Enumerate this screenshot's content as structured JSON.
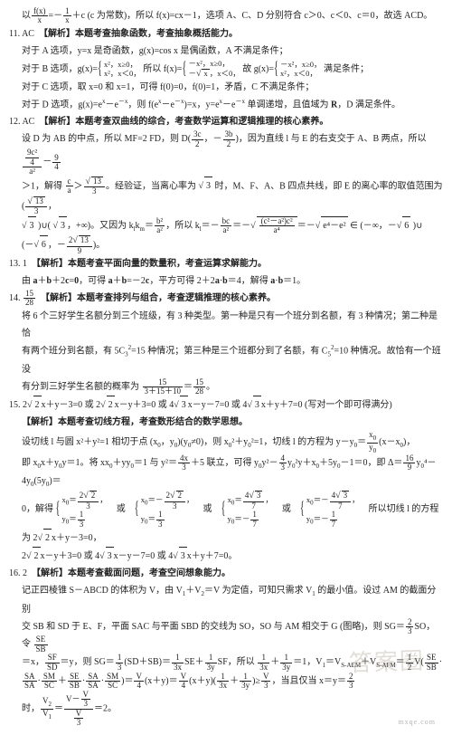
{
  "pre": {
    "line": "以<span class='frac'><span class='n'>f(x)</span><span class='d'>x</span></span>=－<span class='frac'><span class='n'>1</span><span class='d'>x</span></span>＋c (c 为常数)，所以 f(x)=cx－1，选项 A、C、D 分别符合 c＞0、c＜0、c＝0，故选 ACD。"
  },
  "q11": {
    "head": "11. AC　<span class='b'>【解析】本题考查抽象函数，考查抽象概括能力。</span>",
    "a": "对于 A 选项，y=x 是奇函数，g(x)=cos x 是偶函数，A 不满足条件；",
    "b": "对于 B 选项，g(x)=<span class='brace'><span class='row'>x²，x≥0，</span><span class='row'>x²，x＜0，</span></span> 所以 f(x)=<span class='brace'><span class='row'>－x²，x≥0，</span><span class='row'>－<span class='radical'></span><span class='sqrt'>x</span>，x＜0，</span></span> 故 g(x)=<span class='brace'><span class='row'>－x²，x≥0，</span><span class='row'>x²，x＜0，</span></span> 满足条件；",
    "c": "对于 C 选项，取 x=0 和 x=1，可得 f(0)=0，f(0)=1，矛盾，C 不满足条件；",
    "d": "对于 D 选项，g(x)=e<span class='sup'>x</span>－e<span class='sup'>－x</span>，则 f(e<span class='sup'>x</span>－e<span class='sup'>－x</span>)=x，y=e<span class='sup'>x</span>－e<span class='sup'>－x</span> 单调递增，且值域为 <span class='b'>R</span>，D 满足条件。"
  },
  "q12": {
    "head": "12. AC　<span class='b'>【解析】本题考查双曲线的综合，考查数学运算和逻辑推理的核心素养。</span>",
    "p1": "设 D 为 AB 的中点，所以 MF=2 FD，则 D(<span class='frac'><span class='n'>3c</span><span class='d'>2</span></span>，－<span class='frac'><span class='n'>3b</span><span class='d'>2</span></span>)，因为直线 l 与 E 的右支交于 A、B 两点，所以 <span class='frac'><span class='n'><span class='frac'><span class='n'>9c²</span><span class='d'>4</span></span></span><span class='d'>a²</span></span>－<span class='frac'><span class='n'>9</span><span class='d'>4</span></span>",
    "p2": "＞1，解得 <span class='frac'><span class='n'>c</span><span class='d'>a</span></span>＞<span class='frac'><span class='n'><span class='radical'></span><span class='sqrt'>13</span></span><span class='d'>3</span></span>。经验证，当离心率为 <span class='radical'></span><span class='sqrt'>3</span> 时，M、F、A、B 四点共线，即 E 的离心率的取值范围为 (<span class='frac'><span class='n'><span class='radical'></span><span class='sqrt'>13</span></span><span class='d'>3</span></span>，",
    "p3": "<span class='radical'></span><span class='sqrt'>3</span> )∪( <span class='radical'></span><span class='sqrt'>3</span>，+∞)。又因为 k<span class='sub'>l</span>k<span class='sub'>m</span>＝<span class='frac'><span class='n'>b²</span><span class='d'>a²</span></span>，所以 k<span class='sub'>l</span>＝－<span class='frac'><span class='n'>bc</span><span class='d'>a²</span></span>＝－<span class='radical'></span><span class='sqrt'><span class='frac'><span class='n'>(c²－a²)c²</span><span class='d'>a⁴</span></span></span>＝－<span class='radical'></span><span class='sqrt'>e⁴－e²</span> ∈ (－∞，－<span class='radical'></span><span class='sqrt'>6</span> )∪",
    "p4": "(－<span class='radical'></span><span class='sqrt'>6</span>，－<span class='frac'><span class='n'>2<span class='radical'></span><span class='sqrt'>13</span></span><span class='d'>9</span></span>)。"
  },
  "q13": {
    "head": "13. 1　<span class='b'>【解析】本题考查平面向量的数量积，考查运算求解能力。</span>",
    "p1": "由 <span class='b'>a</span>＋<span class='b'>b</span>＋2<span class='b'>c</span>=<span class='b'>0</span>，可得 <span class='b'>a</span>＋<span class='b'>b</span>=－2<span class='b'>c</span>，平方可得 2＋2<span class='b'>a</span>·<span class='b'>b</span>＝4，解得 <span class='b'>a</span>·<span class='b'>b</span>＝1。"
  },
  "q14": {
    "head": "14. <span class='frac'><span class='n'>15</span><span class='d'>28</span></span>　<span class='b'>【解析】本题考查排列与组合，考查逻辑推理的核心素养。</span>",
    "p1": "将 6 个三好学生名额分到三个班级，有 3 种类型。第一种是只有一个班分到名额，有 3 种情况；第二种是恰",
    "p2": "有两个班分到名额，有 5C<span class='sub'>3</span><span class='sup'>2</span>=15 种情况；第三种是三个班都分到了名额，有 C<span class='sub'>5</span><span class='sup'>2</span>=10 种情况。故恰有一个班没",
    "p3": "有分到三好学生名额的概率为 <span class='frac'><span class='n'>15</span><span class='d'>3＋15＋10</span></span>＝<span class='frac'><span class='n'>15</span><span class='d'>28</span></span>。"
  },
  "q15": {
    "head": "15. 2<span class='radical'></span><span class='sqrt'>2</span>x＋y－3=0 或 2<span class='radical'></span><span class='sqrt'>2</span>x－y＋3=0 或 4<span class='radical'></span><span class='sqrt'>3</span>x－y－7=0 或 4<span class='radical'></span><span class='sqrt'>3</span>x＋y＋7=0 (写对一个即可得满分)",
    "tag": "<span class='b'>【解析】本题考查切线方程，考查数形结合的数学思想。</span>",
    "p1": "设切线 l 与圆 x²＋y²=1 相切于点 (x<span class='sub'>0</span>，y<span class='sub'>0</span>)(y<span class='sub'>0</span>≠0)，则 x<span class='sub'>0</span>²＋y<span class='sub'>0</span>²=1，切线 l 的方程为 y－y<span class='sub'>0</span>＝<span class='frac'><span class='n'>x<span class='sub'>0</span></span><span class='d'>y<span class='sub'>0</span></span></span>(x－x<span class='sub'>0</span>)，",
    "p2": "即 x<span class='sub'>0</span>x＋y<span class='sub'>0</span>y＝1。将 xx<span class='sub'>0</span>＋yy<span class='sub'>0</span>＝1 与 y²＝<span class='frac'><span class='n'>4x</span><span class='d'>3</span></span>＋5 联立，可得 y<span class='sub'>0</span>y²－<span class='frac'><span class='n'>4</span><span class='d'>3</span></span>y<span class='sub'>0</span>²y＋x<span class='sub'>0</span>＋5y<span class='sub'>0</span>－1＝0，即 Δ＝<span class='frac'><span class='n'>16</span><span class='d'>9</span></span>y<span class='sub'>0</span>⁴－4y<span class='sub'>0</span>(5y<span class='sub'>0</span>)＝",
    "p3": "0，解得 <span class='brace'><span class='row'>x<span class='sub'>0</span>＝<span class='frac'><span class='n'>2<span class='radical'></span><span class='sqrt'>2</span></span><span class='d'>3</span></span>，</span><span class='row'>y<span class='sub'>0</span>＝<span class='frac'><span class='n'>1</span><span class='d'>3</span></span></span></span>　或　<span class='brace'><span class='row'>x<span class='sub'>0</span>＝－<span class='frac'><span class='n'>2<span class='radical'></span><span class='sqrt'>2</span></span><span class='d'>3</span></span>，</span><span class='row'>y<span class='sub'>0</span>＝<span class='frac'><span class='n'>1</span><span class='d'>3</span></span></span></span>　或　<span class='brace'><span class='row'>x<span class='sub'>0</span>＝<span class='frac'><span class='n'>4<span class='radical'></span><span class='sqrt'>3</span></span><span class='d'>7</span></span>，</span><span class='row'>y<span class='sub'>0</span>＝－<span class='frac'><span class='n'>1</span><span class='d'>7</span></span></span></span>　或　<span class='brace'><span class='row'>x<span class='sub'>0</span>＝－<span class='frac'><span class='n'>4<span class='radical'></span><span class='sqrt'>3</span></span><span class='d'>7</span></span>，</span><span class='row'>y<span class='sub'>0</span>＝－<span class='frac'><span class='n'>1</span><span class='d'>7</span></span></span></span>　所以切线 l 的方程为 2<span class='radical'></span><span class='sqrt'>2</span>x＋y－3=0，",
    "p4": "2<span class='radical'></span><span class='sqrt'>2</span>x－y＋3=0 或 4<span class='radical'></span><span class='sqrt'>3</span>x－y－7=0 或 4<span class='radical'></span><span class='sqrt'>3</span>x＋y＋7=0。"
  },
  "q16": {
    "head": "16. 2　<span class='b'>【解析】本题考查截面问题，考查空间想象能力。</span>",
    "p1": "记正四棱锥 S－ABCD 的体积为 V，由 V<span class='sub'>1</span>＋V<span class='sub'>2</span>＝V 为定值，可知只需求 V<span class='sub'>1</span> 的最小值。设过 AM 的截面分别",
    "p2": "交 SB 和 SD 于 E、F，平面 SAC 与平面 SBD 的交线为 SO，SO 与 AM 相交于 G (图略)，则 SG＝<span class='frac'><span class='n'>2</span><span class='d'>3</span></span>SO，令 <span class='frac'><span class='n'>SE</span><span class='d'>SB</span></span>",
    "p3": "＝x，<span class='frac'><span class='n'>SF</span><span class='d'>SD</span></span>＝y，则 SG＝<span class='frac'><span class='n'>1</span><span class='d'>3</span></span>(SD＋SB)＝<span class='frac'><span class='n'>1</span><span class='d'>3x</span></span>SE＋<span class='frac'><span class='n'>1</span><span class='d'>3y</span></span>SF，所以 <span class='frac'><span class='n'>1</span><span class='d'>3x</span></span>＋<span class='frac'><span class='n'>1</span><span class='d'>3y</span></span>＝1，V<span class='sub'>1</span>＝V<span class='sub'>S-AEM</span>＋V<span class='sub'>S-AFM</span>＝<span class='frac'><span class='n'>1</span><span class='d'>2</span></span>V(<span class='frac'><span class='n'>SE</span><span class='d'>SB</span></span>·",
    "p4": "<span class='frac'><span class='n'>SA</span><span class='d'>SA</span></span>·<span class='frac'><span class='n'>SM</span><span class='d'>SC</span></span>＋<span class='frac'><span class='n'>SE</span><span class='d'>SB</span></span>·<span class='frac'><span class='n'>SA</span><span class='d'>SA</span></span>·<span class='frac'><span class='n'>SM</span><span class='d'>SC</span></span>)＝<span class='frac'><span class='n'>V</span><span class='d'>4</span></span>(x＋y)＝<span class='frac'><span class='n'>V</span><span class='d'>4</span></span>(x＋y)(<span class='frac'><span class='n'>1</span><span class='d'>3x</span></span>＋<span class='frac'><span class='n'>1</span><span class='d'>3y</span></span>)≥<span class='frac'><span class='n'>V</span><span class='d'>3</span></span>，当且仅当 x＝y＝<span class='frac'><span class='n'>2</span><span class='d'>3</span></span>",
    "p5": "时，<span class='frac'><span class='n'>V<span class='sub'>2</span></span><span class='d'>V<span class='sub'>1</span></span></span>＝<span class='frac'><span class='n'>V－<span class='frac'><span class='n'>V</span><span class='d'>3</span></span></span><span class='d'><span class='frac'><span class='n'>V</span><span class='d'>3</span></span></span></span>＝2。"
  },
  "watermark": "答案圈",
  "footer": "mxqe.com"
}
